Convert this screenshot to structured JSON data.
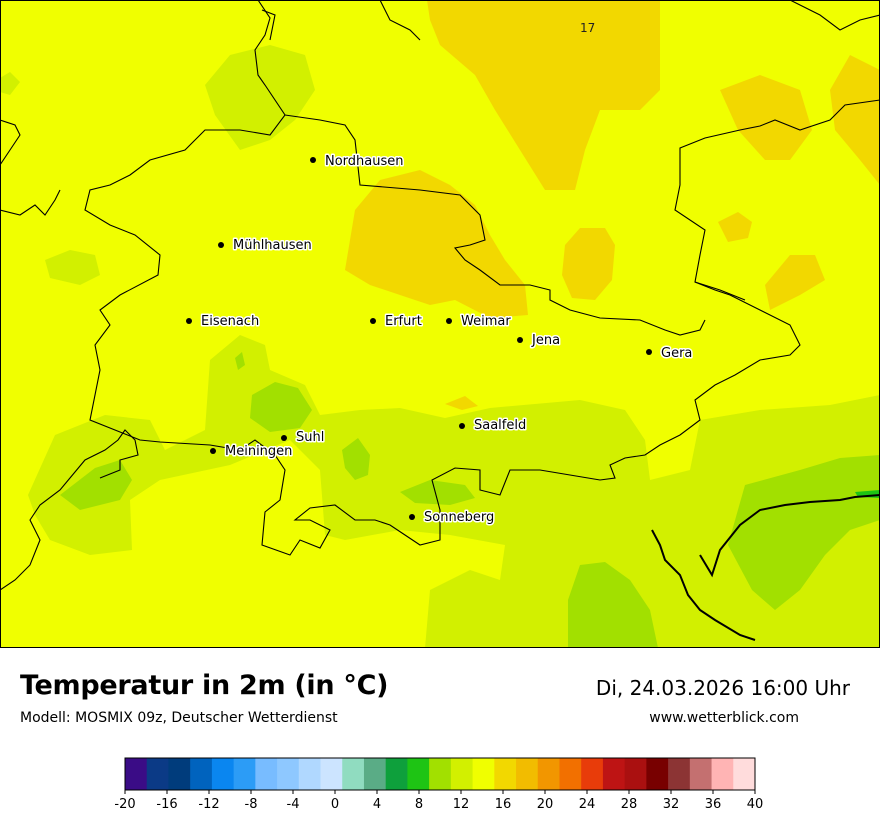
{
  "title": "Temperatur in 2m (in °C)",
  "model": "Modell: MOSMIX 09z, Deutscher Wetterdienst",
  "datetime": "Di, 24.03.2026 16:00 Uhr",
  "website": "www.wetterblick.com",
  "map_value_label": "17",
  "cities": [
    {
      "name": "Nordhausen"
    },
    {
      "name": "Mühlhausen"
    },
    {
      "name": "Eisenach"
    },
    {
      "name": "Erfurt"
    },
    {
      "name": "Weimar"
    },
    {
      "name": "Jena"
    },
    {
      "name": "Gera"
    },
    {
      "name": "Saalfeld"
    },
    {
      "name": "Suhl"
    },
    {
      "name": "Meiningen"
    },
    {
      "name": "Sonneberg"
    }
  ],
  "legend": {
    "min": -20,
    "max": 40,
    "step": 2,
    "tick_labels": [
      "-20",
      "-16",
      "-12",
      "-8",
      "-4",
      "0",
      "4",
      "8",
      "12",
      "16",
      "20",
      "24",
      "28",
      "32",
      "36",
      "40"
    ],
    "colors": [
      "#3a0c86",
      "#0b3a86",
      "#003c7c",
      "#0063be",
      "#0a86f0",
      "#2c9cf6",
      "#78bcff",
      "#8ec8ff",
      "#b0d8ff",
      "#cce4ff",
      "#90dcc0",
      "#5aac86",
      "#0ea03c",
      "#1ec414",
      "#a2e000",
      "#d2f000",
      "#f0ff00",
      "#f2d800",
      "#f2bc00",
      "#f29600",
      "#f27000",
      "#e83c0a",
      "#be1414",
      "#aa1010",
      "#780000",
      "#8c3434",
      "#c47070",
      "#ffb4b4",
      "#ffdcdc"
    ]
  },
  "fields": {
    "base": "#f0ff00",
    "warm": "#f2d800",
    "cool_light": "#d2f000",
    "cool_mid": "#a2e000",
    "cool_dark": "#1ec414"
  }
}
